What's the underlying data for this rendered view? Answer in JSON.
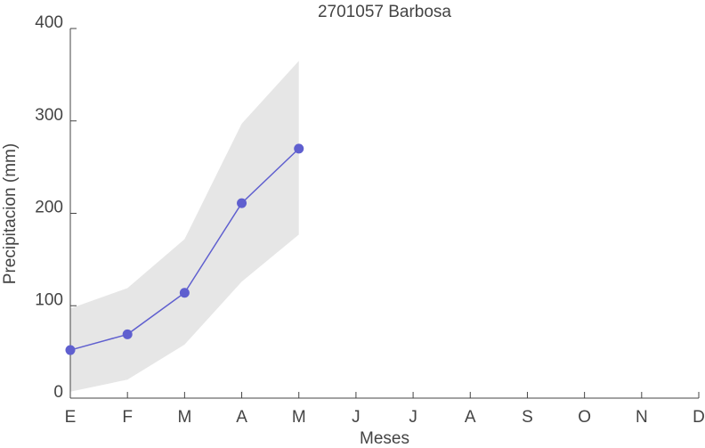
{
  "chart_data": {
    "type": "line",
    "title": "2701057 Barbosa",
    "x_label": "Meses",
    "y_label": "Precipitacion (mm)",
    "categories": [
      "E",
      "F",
      "M",
      "A",
      "M",
      "J",
      "J",
      "A",
      "S",
      "O",
      "N",
      "D"
    ],
    "series": [
      {
        "color": "#5f5fcf",
        "values": [
          52,
          69,
          114,
          211,
          270,
          null,
          null,
          null,
          null,
          null,
          null,
          null
        ]
      }
    ],
    "band": {
      "color": "#e6e6e6",
      "lower": [
        7,
        20,
        58,
        126,
        177,
        null,
        null,
        null,
        null,
        null,
        null,
        null
      ],
      "upper": [
        97,
        119,
        172,
        297,
        365,
        null,
        null,
        null,
        null,
        null,
        null,
        null
      ]
    },
    "ylim": [
      0,
      400
    ],
    "yticks": [
      0,
      100,
      200,
      300,
      400
    ]
  }
}
